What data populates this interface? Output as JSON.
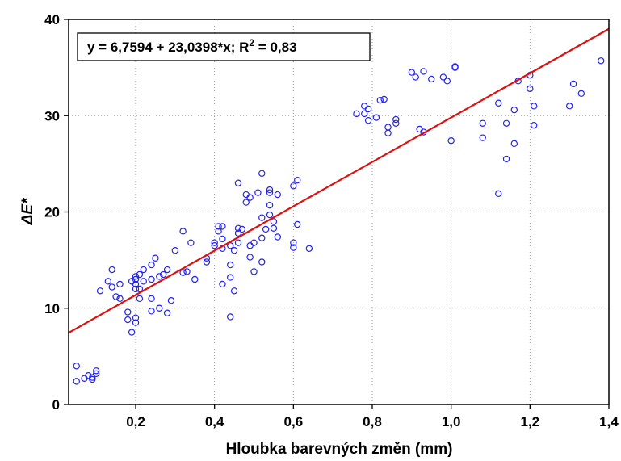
{
  "chart_data": {
    "type": "scatter",
    "xlabel": "Hloubka barevných změn (mm)",
    "ylabel": "ΔE*",
    "xlim": [
      0.03,
      1.4
    ],
    "ylim": [
      0,
      40
    ],
    "x_ticks": [
      "0,2",
      "0,4",
      "0,6",
      "0,8",
      "1,0",
      "1,2",
      "1,4"
    ],
    "y_ticks": [
      "0",
      "10",
      "20",
      "30",
      "40"
    ],
    "grid": "dotted",
    "equation": "y = 6,7594 + 23,0398*x; R² = 0,83",
    "fit": {
      "intercept": 6.7594,
      "slope": 23.0398,
      "r2": 0.83
    },
    "colors": {
      "points": "#2222ee",
      "fit_line": "#dd1111"
    },
    "points": [
      [
        0.05,
        4.0
      ],
      [
        0.05,
        2.4
      ],
      [
        0.07,
        2.7
      ],
      [
        0.08,
        3.0
      ],
      [
        0.09,
        2.8
      ],
      [
        0.09,
        2.6
      ],
      [
        0.1,
        3.2
      ],
      [
        0.1,
        3.5
      ],
      [
        0.11,
        11.8
      ],
      [
        0.13,
        12.8
      ],
      [
        0.14,
        14.0
      ],
      [
        0.14,
        12.2
      ],
      [
        0.15,
        11.2
      ],
      [
        0.16,
        12.5
      ],
      [
        0.16,
        11.0
      ],
      [
        0.18,
        9.6
      ],
      [
        0.18,
        8.8
      ],
      [
        0.19,
        12.8
      ],
      [
        0.19,
        7.5
      ],
      [
        0.2,
        13.3
      ],
      [
        0.2,
        13.0
      ],
      [
        0.2,
        12.5
      ],
      [
        0.2,
        12.0
      ],
      [
        0.2,
        9.0
      ],
      [
        0.2,
        8.5
      ],
      [
        0.21,
        13.5
      ],
      [
        0.21,
        12.0
      ],
      [
        0.21,
        11.0
      ],
      [
        0.22,
        14.0
      ],
      [
        0.22,
        12.8
      ],
      [
        0.24,
        14.5
      ],
      [
        0.24,
        13.0
      ],
      [
        0.24,
        11.0
      ],
      [
        0.24,
        9.7
      ],
      [
        0.25,
        15.2
      ],
      [
        0.26,
        13.3
      ],
      [
        0.26,
        10.0
      ],
      [
        0.27,
        13.5
      ],
      [
        0.28,
        14.0
      ],
      [
        0.28,
        9.5
      ],
      [
        0.29,
        10.8
      ],
      [
        0.3,
        16.0
      ],
      [
        0.32,
        18.0
      ],
      [
        0.32,
        13.7
      ],
      [
        0.33,
        13.8
      ],
      [
        0.34,
        16.8
      ],
      [
        0.35,
        13.0
      ],
      [
        0.38,
        15.2
      ],
      [
        0.38,
        14.8
      ],
      [
        0.4,
        16.8
      ],
      [
        0.4,
        16.5
      ],
      [
        0.41,
        18.5
      ],
      [
        0.41,
        18.0
      ],
      [
        0.42,
        18.5
      ],
      [
        0.42,
        17.2
      ],
      [
        0.42,
        16.2
      ],
      [
        0.42,
        12.5
      ],
      [
        0.44,
        16.5
      ],
      [
        0.44,
        14.5
      ],
      [
        0.44,
        13.2
      ],
      [
        0.44,
        9.1
      ],
      [
        0.45,
        16.0
      ],
      [
        0.45,
        11.8
      ],
      [
        0.46,
        23.0
      ],
      [
        0.46,
        18.3
      ],
      [
        0.46,
        17.8
      ],
      [
        0.46,
        16.8
      ],
      [
        0.47,
        18.2
      ],
      [
        0.48,
        21.8
      ],
      [
        0.48,
        21.0
      ],
      [
        0.49,
        21.5
      ],
      [
        0.49,
        16.5
      ],
      [
        0.49,
        15.3
      ],
      [
        0.5,
        13.8
      ],
      [
        0.5,
        16.8
      ],
      [
        0.51,
        22.0
      ],
      [
        0.52,
        24.0
      ],
      [
        0.52,
        19.4
      ],
      [
        0.52,
        17.3
      ],
      [
        0.52,
        14.8
      ],
      [
        0.53,
        18.2
      ],
      [
        0.54,
        22.3
      ],
      [
        0.54,
        22.0
      ],
      [
        0.54,
        20.7
      ],
      [
        0.54,
        19.7
      ],
      [
        0.55,
        19.0
      ],
      [
        0.55,
        18.3
      ],
      [
        0.56,
        21.8
      ],
      [
        0.56,
        17.4
      ],
      [
        0.6,
        22.7
      ],
      [
        0.6,
        16.8
      ],
      [
        0.6,
        16.3
      ],
      [
        0.61,
        23.3
      ],
      [
        0.61,
        18.7
      ],
      [
        0.64,
        16.2
      ],
      [
        0.76,
        30.2
      ],
      [
        0.78,
        31.0
      ],
      [
        0.78,
        30.2
      ],
      [
        0.79,
        30.7
      ],
      [
        0.79,
        29.5
      ],
      [
        0.81,
        29.8
      ],
      [
        0.82,
        31.6
      ],
      [
        0.83,
        31.7
      ],
      [
        0.84,
        28.8
      ],
      [
        0.84,
        28.2
      ],
      [
        0.86,
        29.6
      ],
      [
        0.86,
        29.2
      ],
      [
        0.9,
        34.5
      ],
      [
        0.91,
        34.0
      ],
      [
        0.92,
        28.6
      ],
      [
        0.93,
        34.6
      ],
      [
        0.93,
        28.3
      ],
      [
        0.95,
        33.8
      ],
      [
        0.98,
        34.0
      ],
      [
        0.99,
        33.6
      ],
      [
        1.0,
        27.4
      ],
      [
        1.01,
        35.0
      ],
      [
        1.01,
        35.1
      ],
      [
        1.08,
        29.2
      ],
      [
        1.08,
        27.7
      ],
      [
        1.12,
        31.3
      ],
      [
        1.12,
        21.9
      ],
      [
        1.14,
        29.2
      ],
      [
        1.14,
        25.5
      ],
      [
        1.16,
        30.6
      ],
      [
        1.16,
        27.1
      ],
      [
        1.17,
        33.6
      ],
      [
        1.2,
        34.2
      ],
      [
        1.2,
        32.8
      ],
      [
        1.21,
        31.0
      ],
      [
        1.21,
        29.0
      ],
      [
        1.3,
        31.0
      ],
      [
        1.31,
        33.3
      ],
      [
        1.33,
        32.3
      ],
      [
        1.38,
        35.7
      ]
    ]
  }
}
